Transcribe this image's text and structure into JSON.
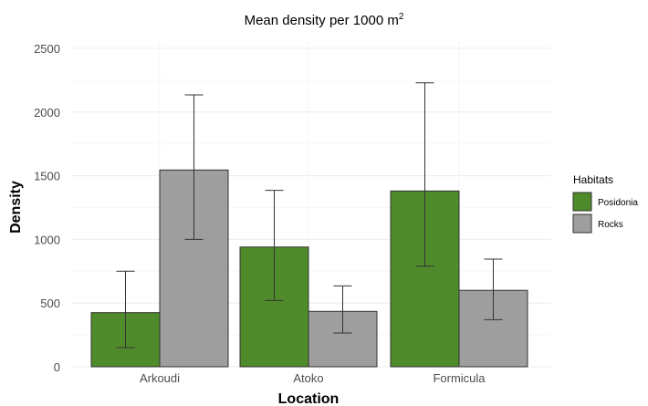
{
  "chart_data": {
    "type": "bar",
    "title": "Mean density per 1000 m",
    "title_superscript": "2",
    "xlabel": "Location",
    "ylabel": "Density",
    "categories": [
      "Arkoudi",
      "Atoko",
      "Formicula"
    ],
    "ylim": [
      0,
      2500
    ],
    "yticks": [
      "0",
      "500",
      "1000",
      "1500",
      "2000",
      "2500"
    ],
    "grid": true,
    "legend": {
      "title": "Habitats",
      "position": "right"
    },
    "series": [
      {
        "name": "Posidonia",
        "color": "#4f8a2b",
        "values": [
          425,
          940,
          1380
        ],
        "error_low": [
          150,
          520,
          790
        ],
        "error_high": [
          750,
          1385,
          2230
        ]
      },
      {
        "name": "Rocks",
        "color": "#9e9e9e",
        "values": [
          1545,
          435,
          600
        ],
        "error_low": [
          1000,
          265,
          370
        ],
        "error_high": [
          2135,
          635,
          845
        ]
      }
    ]
  }
}
